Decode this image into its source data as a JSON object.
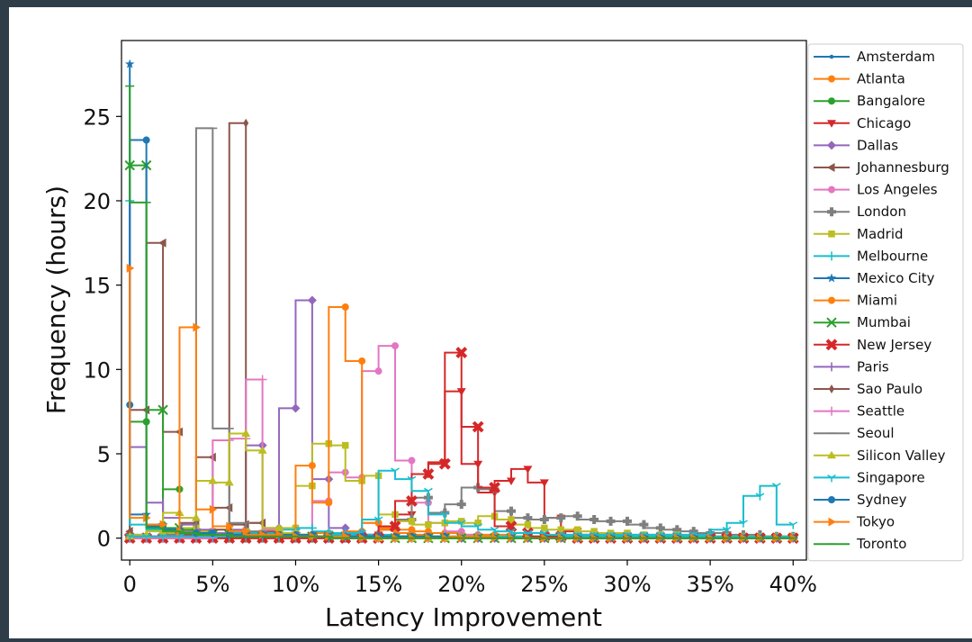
{
  "chart_data": {
    "type": "line",
    "step": true,
    "xlabel": "Latency Improvement",
    "ylabel": "Frequency (hours)",
    "xlim": [
      -0.5,
      40.8
    ],
    "ylim": [
      -1.3,
      29.5
    ],
    "x_ticks": [
      0,
      5,
      10,
      15,
      20,
      25,
      30,
      35,
      40
    ],
    "x_tick_labels": [
      "0",
      "5%",
      "10%",
      "15%",
      "20%",
      "25%",
      "30%",
      "35%",
      "40%"
    ],
    "y_ticks": [
      0,
      5,
      10,
      15,
      20,
      25
    ],
    "y_tick_labels": [
      "0",
      "5",
      "10",
      "15",
      "20",
      "25"
    ],
    "legend_position": "right, outside plot",
    "x": [
      0,
      1,
      2,
      3,
      4,
      5,
      6,
      7,
      8,
      9,
      10,
      11,
      12,
      13,
      14,
      15,
      16,
      17,
      18,
      19,
      20,
      21,
      22,
      23,
      24,
      25,
      26,
      27,
      28,
      29,
      30,
      31,
      32,
      33,
      34,
      35,
      36,
      37,
      38,
      39,
      40
    ],
    "series": [
      {
        "name": "Amsterdam",
        "color": "#1f77b4",
        "marker": ".",
        "values": [
          0.3,
          0.2,
          0.1,
          0.1,
          0.1,
          0,
          0,
          0,
          0,
          0,
          0,
          0,
          0,
          0,
          0,
          0,
          0,
          0,
          0,
          0,
          0,
          0,
          0,
          0,
          0,
          0,
          0,
          0,
          0,
          0,
          0,
          0,
          0,
          0,
          0,
          0,
          0,
          0,
          0,
          0,
          0
        ]
      },
      {
        "name": "Atlanta",
        "color": "#ff7f0e",
        "marker": "o",
        "values": [
          0.2,
          0.1,
          0.1,
          0.1,
          0.1,
          0.1,
          0.1,
          0.1,
          0.1,
          0.1,
          0.2,
          0.2,
          0.3,
          0.3,
          0.4,
          0.9,
          0.6,
          0.5,
          0.4,
          0.3,
          0.3,
          0.2,
          0.2,
          0.2,
          0.1,
          0.1,
          0.1,
          0.1,
          0.1,
          0.1,
          0.1,
          0.1,
          0.1,
          0.1,
          0.1,
          0.1,
          0.1,
          0.1,
          0.1,
          0.1,
          0.1
        ]
      },
      {
        "name": "Bangalore",
        "color": "#2ca02c",
        "marker": "o",
        "values": [
          0.2,
          6.9,
          0.8,
          2.9,
          0.5,
          0.4,
          0.3,
          0.2,
          0.2,
          0.1,
          0.1,
          0.1,
          0.1,
          0.1,
          0.1,
          0.1,
          0.1,
          0,
          0,
          0,
          0,
          0,
          0,
          0,
          0,
          0,
          0,
          0,
          0,
          0,
          0,
          0,
          0,
          0,
          0,
          0,
          0,
          0,
          0,
          0,
          0
        ]
      },
      {
        "name": "Chicago",
        "color": "#d62728",
        "marker": "v",
        "values": [
          0,
          0,
          0,
          0,
          0,
          0,
          0,
          0,
          0,
          0,
          0,
          0,
          0,
          0,
          0,
          0.2,
          0.5,
          1.4,
          3.8,
          4.5,
          8.7,
          4.4,
          2.7,
          3.4,
          4.1,
          3.3,
          1.2,
          0.4,
          0.2,
          0.1,
          0.1,
          0,
          0,
          0,
          0,
          0,
          0,
          0,
          0,
          0,
          0
        ]
      },
      {
        "name": "Dallas",
        "color": "#9467bd",
        "marker": "D",
        "values": [
          0.1,
          0.1,
          0.1,
          0.1,
          0.1,
          0.1,
          0.1,
          0.5,
          5.5,
          0.6,
          7.7,
          14.1,
          3.5,
          0.6,
          0.3,
          0.2,
          0.1,
          0.1,
          0.1,
          0.1,
          0,
          0,
          0,
          0,
          0,
          0,
          0,
          0,
          0,
          0,
          0,
          0,
          0,
          0,
          0,
          0,
          0,
          0,
          0,
          0,
          0
        ]
      },
      {
        "name": "Johannesburg",
        "color": "#8c564b",
        "marker": "<",
        "values": [
          0.4,
          7.6,
          17.5,
          6.3,
          0.9,
          4.8,
          1.8,
          0.8,
          0.9,
          0.3,
          0.2,
          0.1,
          0.1,
          0.1,
          0.1,
          0.1,
          0,
          0,
          0,
          0,
          0,
          0,
          0,
          0,
          0,
          0,
          0,
          0,
          0,
          0,
          0,
          0,
          0,
          0,
          0,
          0,
          0,
          0,
          0,
          0,
          0
        ]
      },
      {
        "name": "Los Angeles",
        "color": "#e377c2",
        "marker": "o",
        "values": [
          0,
          0,
          0,
          0,
          0,
          0,
          0,
          0,
          0,
          0,
          0,
          0,
          2.2,
          3.9,
          3.6,
          9.9,
          11.4,
          4.6,
          2.1,
          0.9,
          0.4,
          0.2,
          0.1,
          0.1,
          0.1,
          0,
          0,
          0,
          0,
          0,
          0,
          0,
          0,
          0,
          0,
          0,
          0,
          0,
          0,
          0,
          0
        ]
      },
      {
        "name": "London",
        "color": "#7f7f7f",
        "marker": "P",
        "values": [
          0,
          0,
          0,
          0,
          0,
          0,
          0,
          0,
          0,
          0,
          0,
          0,
          0,
          0,
          0,
          0.2,
          0.5,
          1.1,
          2.4,
          1.5,
          2.0,
          3.0,
          2.9,
          1.6,
          1.2,
          1.1,
          1.2,
          1.3,
          1.1,
          1.0,
          1.0,
          0.8,
          0.6,
          0.5,
          0.4,
          0.3,
          0.3,
          0.2,
          0.2,
          0.1,
          0.1
        ]
      },
      {
        "name": "Madrid",
        "color": "#bcbd22",
        "marker": "s",
        "values": [
          0.1,
          0.1,
          0.1,
          0.3,
          0.6,
          0.4,
          0.5,
          0.4,
          0.3,
          0.5,
          0.6,
          3.1,
          5.6,
          5.5,
          3.4,
          3.7,
          1.4,
          1.0,
          0.8,
          0.9,
          1.0,
          0.9,
          1.3,
          1.1,
          0.8,
          0.6,
          0.5,
          0.5,
          0.4,
          0.3,
          0.3,
          0.2,
          0.2,
          0.2,
          0.1,
          0.1,
          0.1,
          0.1,
          0.1,
          0.1,
          0.1
        ]
      },
      {
        "name": "Melbourne",
        "color": "#17becf",
        "marker": "+",
        "values": [
          20.0,
          0.8,
          0.5,
          0.4,
          0.3,
          0.3,
          0.3,
          0.3,
          0.3,
          0.3,
          0.5,
          0.6,
          0.4,
          0.3,
          0.2,
          0.2,
          0.2,
          0.1,
          0.1,
          0.1,
          0.1,
          0.1,
          0.1,
          0.1,
          0.1,
          0.1,
          0.1,
          0.1,
          0.1,
          0.1,
          0.1,
          0.1,
          0.1,
          0.1,
          0.1,
          0.1,
          0.1,
          0.1,
          0.1,
          0.1,
          0.1
        ]
      },
      {
        "name": "Mexico City",
        "color": "#1f77b4",
        "marker": "*",
        "values": [
          28.1,
          1.4,
          0.8,
          0.5,
          0.3,
          0.2,
          0.2,
          0.1,
          0.1,
          0.1,
          0.1,
          0.1,
          0.1,
          0.1,
          0.1,
          0.1,
          0.1,
          0.1,
          0,
          0,
          0,
          0,
          0,
          0,
          0,
          0,
          0,
          0,
          0,
          0,
          0,
          0,
          0,
          0,
          0,
          0,
          0,
          0,
          0,
          0,
          0
        ]
      },
      {
        "name": "Miami",
        "color": "#ff7f0e",
        "marker": "o",
        "values": [
          0,
          0,
          0,
          0,
          0,
          0,
          0,
          0,
          0,
          0,
          0,
          4.3,
          2.1,
          13.7,
          10.5,
          0.9,
          0.5,
          0.3,
          0.2,
          0.1,
          0.1,
          0.1,
          0.1,
          0,
          0,
          0,
          0,
          0,
          0,
          0,
          0,
          0,
          0,
          0,
          0,
          0,
          0,
          0,
          0,
          0,
          0
        ]
      },
      {
        "name": "Mumbai",
        "color": "#2ca02c",
        "marker": "x",
        "values": [
          22.1,
          22.1,
          7.6,
          0.6,
          0.3,
          0.2,
          0.2,
          0.1,
          0.1,
          0.1,
          0.1,
          0.1,
          0.1,
          0.1,
          0,
          0,
          0,
          0,
          0,
          0,
          0,
          0,
          0,
          0,
          0,
          0,
          0,
          0,
          0,
          0,
          0,
          0,
          0,
          0,
          0,
          0,
          0,
          0,
          0,
          0,
          0
        ]
      },
      {
        "name": "New Jersey",
        "color": "#d62728",
        "marker": "X",
        "values": [
          0,
          0,
          0,
          0,
          0,
          0,
          0,
          0,
          0,
          0,
          0,
          0,
          0,
          0,
          0,
          0,
          0.7,
          2.2,
          3.8,
          4.4,
          11.0,
          6.6,
          3.0,
          0.7,
          0.3,
          0.1,
          0.1,
          0,
          0,
          0,
          0,
          0,
          0,
          0,
          0,
          0,
          0,
          0,
          0,
          0,
          0
        ]
      },
      {
        "name": "Paris",
        "color": "#9467bd",
        "marker": "|",
        "values": [
          21.3,
          5.4,
          2.1,
          1.2,
          0.8,
          0.5,
          0.3,
          0.2,
          0.2,
          0.1,
          0.1,
          0.1,
          0.1,
          0.1,
          0,
          0,
          0,
          0,
          0,
          0,
          0,
          0,
          0,
          0,
          0,
          0,
          0,
          0,
          0,
          0,
          0,
          0,
          0,
          0,
          0,
          0,
          0,
          0,
          0,
          0,
          0
        ]
      },
      {
        "name": "Sao Paulo",
        "color": "#8c564b",
        "marker": "d",
        "values": [
          0.2,
          0.1,
          0.1,
          0.1,
          0.2,
          0.3,
          0.5,
          24.6,
          0.9,
          0.4,
          0.2,
          0.1,
          0.1,
          0.1,
          0.1,
          0,
          0,
          0,
          0,
          0,
          0,
          0,
          0,
          0,
          0,
          0,
          0,
          0,
          0,
          0,
          0,
          0,
          0,
          0,
          0,
          0,
          0,
          0,
          0,
          0,
          0
        ]
      },
      {
        "name": "Seattle",
        "color": "#e377c2",
        "marker": "+",
        "values": [
          0,
          0,
          0,
          0,
          0,
          0,
          5.8,
          5.9,
          9.4,
          0.5,
          0.3,
          0.2,
          0.1,
          0.1,
          0.1,
          0,
          0,
          0,
          0,
          0,
          0,
          0,
          0,
          0,
          0,
          0,
          0,
          0,
          0,
          0,
          0,
          0,
          0,
          0,
          0,
          0,
          0,
          0,
          0,
          0,
          0
        ]
      },
      {
        "name": "Seoul",
        "color": "#7f7f7f",
        "marker": "_",
        "values": [
          0.1,
          0.1,
          0.1,
          0.2,
          0.4,
          24.3,
          6.5,
          0.9,
          0.4,
          0.2,
          0.1,
          0.1,
          0.1,
          0,
          0,
          0,
          0,
          0,
          0,
          0,
          0,
          0,
          0,
          0,
          0,
          0,
          0,
          0,
          0,
          0,
          0,
          0,
          0,
          0,
          0,
          0,
          0,
          0,
          0,
          0,
          0
        ]
      },
      {
        "name": "Silicon Valley",
        "color": "#bcbd22",
        "marker": "^",
        "values": [
          0.1,
          0.2,
          0.4,
          1.5,
          1.2,
          3.4,
          3.3,
          6.2,
          5.2,
          0.6,
          0.3,
          0.2,
          0.1,
          0.1,
          0.1,
          0,
          0,
          0,
          0,
          0,
          0,
          0,
          0,
          0,
          0,
          0,
          0,
          0,
          0,
          0,
          0,
          0,
          0,
          0,
          0,
          0,
          0,
          0,
          0,
          0,
          0
        ]
      },
      {
        "name": "Singapore",
        "color": "#17becf",
        "marker": "1",
        "values": [
          0.1,
          0.1,
          0.1,
          0.1,
          0.1,
          0.1,
          0.1,
          0.1,
          0.1,
          0.1,
          0.1,
          0.1,
          0.1,
          0.2,
          0.3,
          1.1,
          4.0,
          3.5,
          2.8,
          1.4,
          0.9,
          0.7,
          0.5,
          0.4,
          0.3,
          0.3,
          0.2,
          0.2,
          0.2,
          0.2,
          0.2,
          0.2,
          0.2,
          0.2,
          0.2,
          0.2,
          0.5,
          0.9,
          2.5,
          3.1,
          0.8
        ]
      },
      {
        "name": "Sydney",
        "color": "#1f77b4",
        "marker": "o",
        "values": [
          7.9,
          23.6,
          0.7,
          0.5,
          0.3,
          0.3,
          0.2,
          0.2,
          0.2,
          0.2,
          0.2,
          0.2,
          0.1,
          0.1,
          0.1,
          0.1,
          0.1,
          0.1,
          0.1,
          0.1,
          0,
          0,
          0,
          0,
          0,
          0,
          0,
          0,
          0,
          0,
          0,
          0,
          0,
          0,
          0,
          0,
          0,
          0,
          0,
          0,
          0
        ]
      },
      {
        "name": "Tokyo",
        "color": "#ff7f0e",
        "marker": ">",
        "values": [
          16.0,
          1.2,
          0.8,
          0.4,
          12.5,
          1.7,
          0.7,
          0.4,
          0.2,
          0.2,
          0.1,
          0.1,
          0.1,
          0.1,
          0,
          0,
          0,
          0,
          0,
          0,
          0,
          0,
          0,
          0,
          0,
          0,
          0,
          0,
          0,
          0,
          0,
          0,
          0,
          0,
          0,
          0,
          0,
          0,
          0,
          0,
          0
        ]
      },
      {
        "name": "Toronto",
        "color": "#2ca02c",
        "marker": "_",
        "values": [
          26.8,
          19.9,
          0.6,
          0.4,
          0.3,
          0.2,
          0.2,
          0.1,
          0.1,
          0.1,
          0.1,
          0.1,
          0.1,
          0,
          0,
          0,
          0,
          0,
          0,
          0,
          0,
          0,
          0,
          0,
          0,
          0,
          0,
          0,
          0,
          0,
          0,
          0,
          0,
          0,
          0,
          0,
          0,
          0,
          0,
          0,
          0
        ]
      }
    ]
  }
}
